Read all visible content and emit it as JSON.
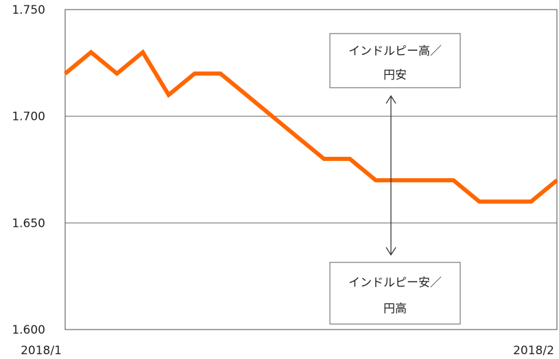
{
  "chart_data": {
    "type": "line",
    "title": "",
    "xlabel": "",
    "ylabel": "",
    "ylim": [
      1.6,
      1.75
    ],
    "yticks": [
      "1.750",
      "1.700",
      "1.650",
      "1.600"
    ],
    "x_tick_labels": [
      "2018/1",
      "2018/2"
    ],
    "grid": "horizontal",
    "series": [
      {
        "color": "#FF6600",
        "values": [
          1.72,
          1.73,
          1.72,
          1.73,
          1.71,
          1.72,
          1.72,
          1.71,
          1.7,
          1.69,
          1.68,
          1.68,
          1.67,
          1.67,
          1.67,
          1.67,
          1.66,
          1.66,
          1.66,
          1.67
        ]
      }
    ],
    "annotations": {
      "upper": [
        "インドルピー高／",
        "円安"
      ],
      "lower": [
        "インドルピー安／",
        "円高"
      ]
    }
  }
}
